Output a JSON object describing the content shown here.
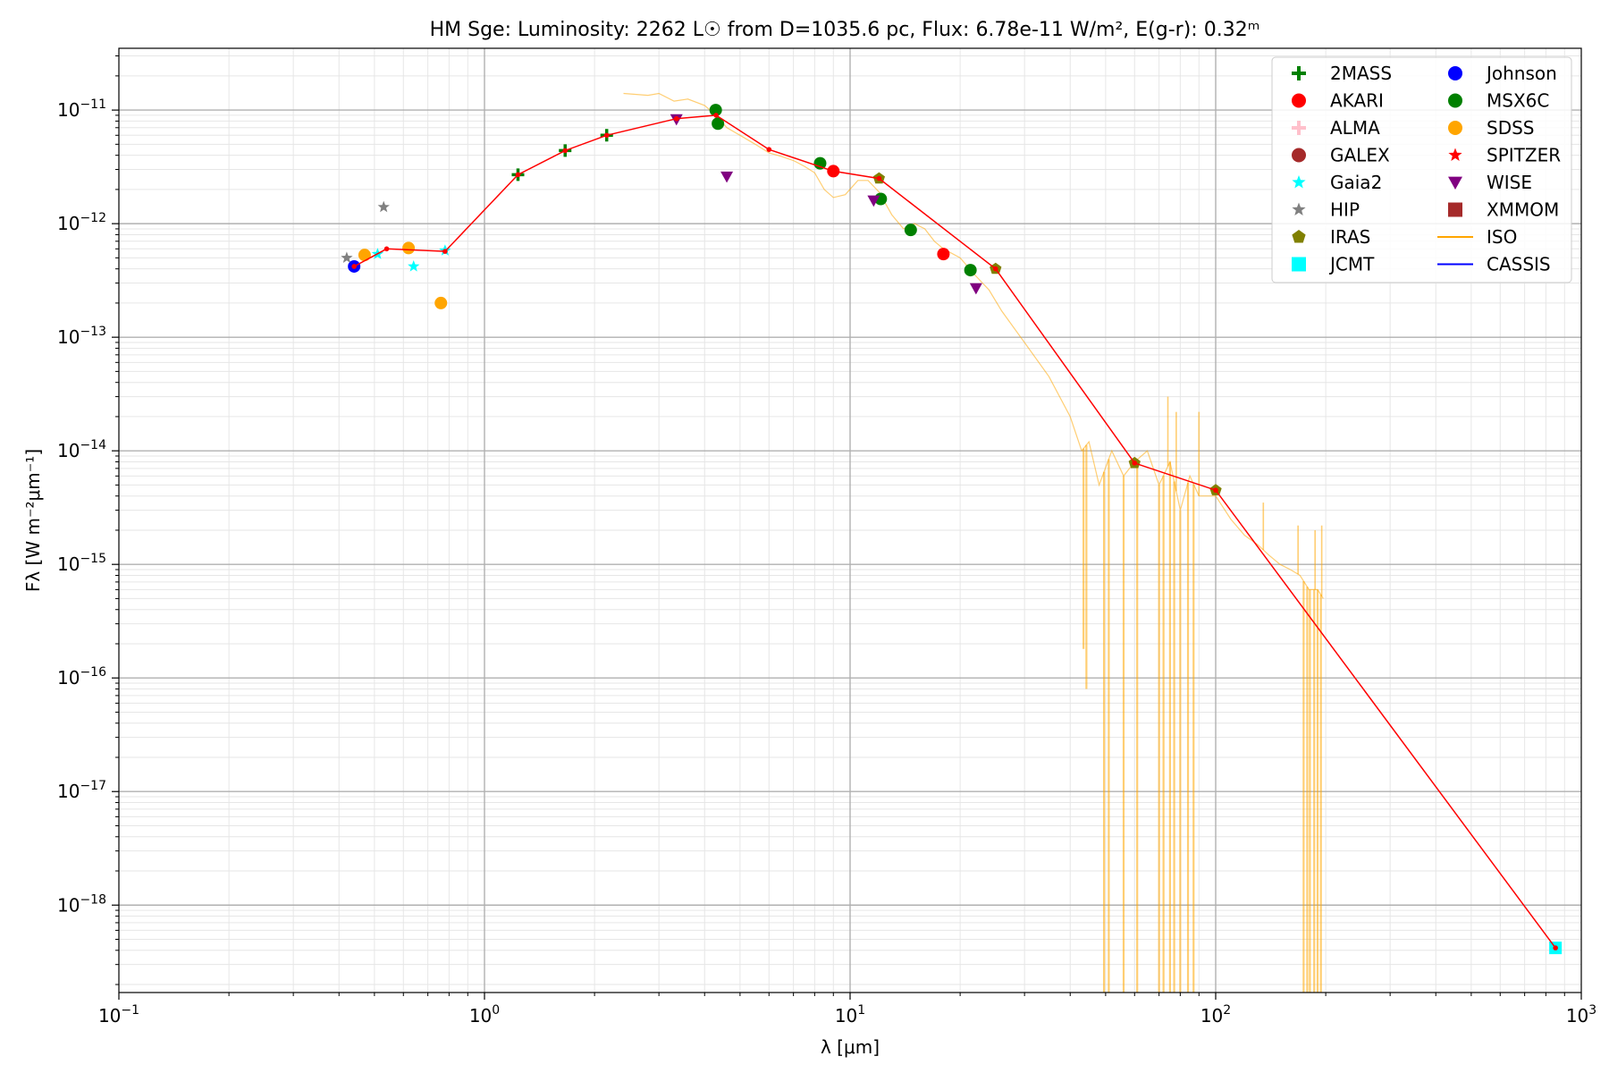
{
  "chart_data": {
    "type": "scatter",
    "title": "HM Sge:  Luminosity: 2262 L☉ from D=1035.6 pc, Flux: 6.78e-11 W/m², E(g-r): 0.32ᵐ",
    "xlabel": "λ [μm]",
    "ylabel": "Fλ [W m⁻²μm⁻¹]",
    "xscale": "log",
    "yscale": "log",
    "xlim": [
      0.1,
      1000
    ],
    "ylim": [
      1.7e-19,
      3.5e-11
    ],
    "x_ticks": [
      0.1,
      1,
      10,
      100,
      1000
    ],
    "x_tick_labels": [
      {
        "base": "10",
        "exp": "−1"
      },
      {
        "base": "10",
        "exp": "0"
      },
      {
        "base": "10",
        "exp": "1"
      },
      {
        "base": "10",
        "exp": "2"
      },
      {
        "base": "10",
        "exp": "3"
      }
    ],
    "y_ticks": [
      1e-18,
      1e-17,
      1e-16,
      1e-15,
      1e-14,
      1e-13,
      1e-12,
      1e-11
    ],
    "y_tick_labels": [
      {
        "base": "10",
        "exp": "−18"
      },
      {
        "base": "10",
        "exp": "−17"
      },
      {
        "base": "10",
        "exp": "−16"
      },
      {
        "base": "10",
        "exp": "−15"
      },
      {
        "base": "10",
        "exp": "−14"
      },
      {
        "base": "10",
        "exp": "−13"
      },
      {
        "base": "10",
        "exp": "−12"
      },
      {
        "base": "10",
        "exp": "−11"
      }
    ],
    "grid": true,
    "legend_position": "top-right",
    "legend": [
      {
        "name": "2MASS",
        "marker": "plus",
        "color": "#008000"
      },
      {
        "name": "AKARI",
        "marker": "circle",
        "color": "#ff0000"
      },
      {
        "name": "ALMA",
        "marker": "plus",
        "color": "#ffc0cb"
      },
      {
        "name": "GALEX",
        "marker": "circle",
        "color": "#a52a2a"
      },
      {
        "name": "Gaia2",
        "marker": "star",
        "color": "#00ffff"
      },
      {
        "name": "HIP",
        "marker": "star",
        "color": "#808080"
      },
      {
        "name": "IRAS",
        "marker": "pentagon",
        "color": "#808000"
      },
      {
        "name": "JCMT",
        "marker": "square",
        "color": "#00ffff"
      },
      {
        "name": "Johnson",
        "marker": "circle",
        "color": "#0000ff"
      },
      {
        "name": "MSX6C",
        "marker": "circle",
        "color": "#008000"
      },
      {
        "name": "SDSS",
        "marker": "circle",
        "color": "#ffa500"
      },
      {
        "name": "SPITZER",
        "marker": "star",
        "color": "#ff0000"
      },
      {
        "name": "WISE",
        "marker": "triangle-down",
        "color": "#800080"
      },
      {
        "name": "XMMOM",
        "marker": "square",
        "color": "#a52a2a"
      },
      {
        "name": "ISO",
        "marker": "line",
        "color": "#ffa500"
      },
      {
        "name": "CASSIS",
        "marker": "line",
        "color": "#0000ff"
      }
    ],
    "series": [
      {
        "name": "2MASS",
        "marker": "plus",
        "color": "#008000",
        "x": [
          1.235,
          1.662,
          2.159
        ],
        "y": [
          2.7e-12,
          4.4e-12,
          6e-12
        ]
      },
      {
        "name": "AKARI",
        "marker": "circle",
        "color": "#ff0000",
        "x": [
          9.0,
          18.0
        ],
        "y": [
          2.9e-12,
          5.4e-13
        ]
      },
      {
        "name": "Gaia2",
        "marker": "star",
        "color": "#00ffff",
        "x": [
          0.51,
          0.64,
          0.78
        ],
        "y": [
          5.4e-13,
          4.2e-13,
          5.8e-13
        ]
      },
      {
        "name": "HIP",
        "marker": "star",
        "color": "#808080",
        "x": [
          0.42,
          0.53
        ],
        "y": [
          5e-13,
          1.4e-12
        ]
      },
      {
        "name": "IRAS",
        "marker": "pentagon",
        "color": "#808000",
        "x": [
          12,
          25,
          60,
          100
        ],
        "y": [
          2.5e-12,
          4e-13,
          7.8e-15,
          4.5e-15
        ]
      },
      {
        "name": "JCMT",
        "marker": "square",
        "color": "#00ffff",
        "x": [
          850
        ],
        "y": [
          4.2e-19
        ]
      },
      {
        "name": "Johnson",
        "marker": "circle",
        "color": "#0000ff",
        "x": [
          0.44
        ],
        "y": [
          4.2e-13
        ]
      },
      {
        "name": "MSX6C",
        "marker": "circle",
        "color": "#008000",
        "x": [
          4.29,
          4.35,
          8.28,
          12.13,
          14.65,
          21.34
        ],
        "y": [
          1e-11,
          7.6e-12,
          3.4e-12,
          1.65e-12,
          8.8e-13,
          3.9e-13
        ]
      },
      {
        "name": "SDSS",
        "marker": "circle",
        "color": "#ffa500",
        "x": [
          0.47,
          0.62,
          0.76
        ],
        "y": [
          5.3e-13,
          6.1e-13,
          2e-13
        ]
      },
      {
        "name": "SPITZER",
        "marker": "star",
        "color": "#ff0000",
        "x": [
          0.44,
          0.54,
          0.78,
          1.235,
          1.662,
          2.159,
          3.35,
          4.3,
          6.0,
          9.0,
          12,
          25,
          60,
          100,
          850
        ],
        "y": [
          4.2e-13,
          6e-13,
          5.7e-13,
          2.7e-12,
          4.4e-12,
          6e-12,
          8.4e-12,
          9e-12,
          4.5e-12,
          2.9e-12,
          2.5e-12,
          4e-13,
          7.8e-15,
          4.5e-15,
          4.2e-19
        ]
      },
      {
        "name": "WISE",
        "marker": "triangle-down",
        "color": "#800080",
        "x": [
          3.35,
          4.6,
          11.6,
          22.1
        ],
        "y": [
          8.3e-12,
          2.6e-12,
          1.6e-12,
          2.7e-13
        ]
      }
    ],
    "sed_line": {
      "color": "#ff0000",
      "x": [
        0.44,
        0.54,
        0.78,
        1.235,
        1.662,
        2.159,
        3.35,
        4.3,
        6.0,
        9.0,
        12,
        25,
        60,
        100,
        850
      ],
      "y": [
        4.2e-13,
        6e-13,
        5.7e-13,
        2.7e-12,
        4.4e-12,
        6e-12,
        8.4e-12,
        9e-12,
        4.5e-12,
        2.9e-12,
        2.5e-12,
        4e-13,
        7.8e-15,
        4.5e-15,
        4.2e-19
      ]
    },
    "iso_spectrum": {
      "name": "ISO",
      "color": "#ffa500",
      "x": [
        2.4,
        2.8,
        3.0,
        3.3,
        3.6,
        4.0,
        4.3,
        4.6,
        5.0,
        5.5,
        6.0,
        6.5,
        7.0,
        7.5,
        8.0,
        8.5,
        9.0,
        9.7,
        10.5,
        11.2,
        12.0,
        13.0,
        14.0,
        15.0,
        16.0,
        17.0,
        18.0,
        20.0,
        22.0,
        24.0,
        26.0,
        30.0,
        35.0,
        40.0,
        43.0,
        45.0,
        48.0,
        52.0,
        56.0,
        60.0,
        65.0,
        70.0,
        75.0,
        80.0,
        85.0,
        90.0,
        100.0,
        110.0,
        120.0,
        130.0,
        140.0,
        150.0,
        160.0,
        170.0,
        180.0,
        190.0,
        197.0
      ],
      "y": [
        1.4e-11,
        1.35e-11,
        1.4e-11,
        1.2e-11,
        1.25e-11,
        1.1e-11,
        9e-12,
        7e-12,
        6e-12,
        5e-12,
        4.2e-12,
        3.9e-12,
        3.6e-12,
        3.2e-12,
        2.8e-12,
        2e-12,
        1.7e-12,
        1.8e-12,
        2.4e-12,
        2.4e-12,
        1.9e-12,
        1.2e-12,
        9e-13,
        1e-12,
        9e-13,
        7e-13,
        6e-13,
        5e-13,
        3.5e-13,
        2.6e-13,
        1.7e-13,
        9e-14,
        4.5e-14,
        2e-14,
        1e-14,
        1.2e-14,
        5e-15,
        1e-14,
        6e-15,
        8e-15,
        1e-14,
        5e-15,
        8e-15,
        3e-15,
        6e-15,
        4e-15,
        4e-15,
        2.5e-15,
        1.8e-15,
        1.5e-15,
        1.2e-15,
        1e-15,
        9e-16,
        8e-16,
        6e-16,
        6e-16,
        5e-16
      ],
      "dips": [
        {
          "x": 43.5,
          "y_low": 1.8e-16
        },
        {
          "x": 44.3,
          "y_low": 8e-17
        },
        {
          "x": 49.5,
          "y_low": 1.7e-19
        },
        {
          "x": 51.0,
          "y_low": 1.7e-19
        },
        {
          "x": 56.0,
          "y_low": 1.7e-19
        },
        {
          "x": 61.0,
          "y_low": 1.7e-19
        },
        {
          "x": 70.0,
          "y_low": 1.7e-19
        },
        {
          "x": 72.0,
          "y_low": 1.7e-19
        },
        {
          "x": 75.0,
          "y_low": 1.7e-19
        },
        {
          "x": 77.0,
          "y_low": 1.7e-19
        },
        {
          "x": 80.0,
          "y_low": 1.7e-19
        },
        {
          "x": 84.0,
          "y_low": 1.7e-19
        },
        {
          "x": 87.0,
          "y_low": 1.7e-19
        },
        {
          "x": 174.0,
          "y_low": 1.7e-19
        },
        {
          "x": 178.0,
          "y_low": 1.7e-19
        },
        {
          "x": 181.0,
          "y_low": 1.7e-19
        },
        {
          "x": 186.0,
          "y_low": 1.7e-19
        },
        {
          "x": 190.0,
          "y_low": 1.7e-19
        },
        {
          "x": 194.0,
          "y_low": 1.7e-19
        }
      ],
      "spikes": [
        {
          "x": 74.0,
          "y_high": 3e-14
        },
        {
          "x": 78.0,
          "y_high": 2.2e-14
        },
        {
          "x": 90.0,
          "y_high": 2.2e-14
        },
        {
          "x": 135.0,
          "y_high": 3.5e-15
        },
        {
          "x": 168.0,
          "y_high": 2.2e-15
        },
        {
          "x": 187.0,
          "y_high": 2e-15
        },
        {
          "x": 195.0,
          "y_high": 2.2e-15
        }
      ]
    }
  }
}
